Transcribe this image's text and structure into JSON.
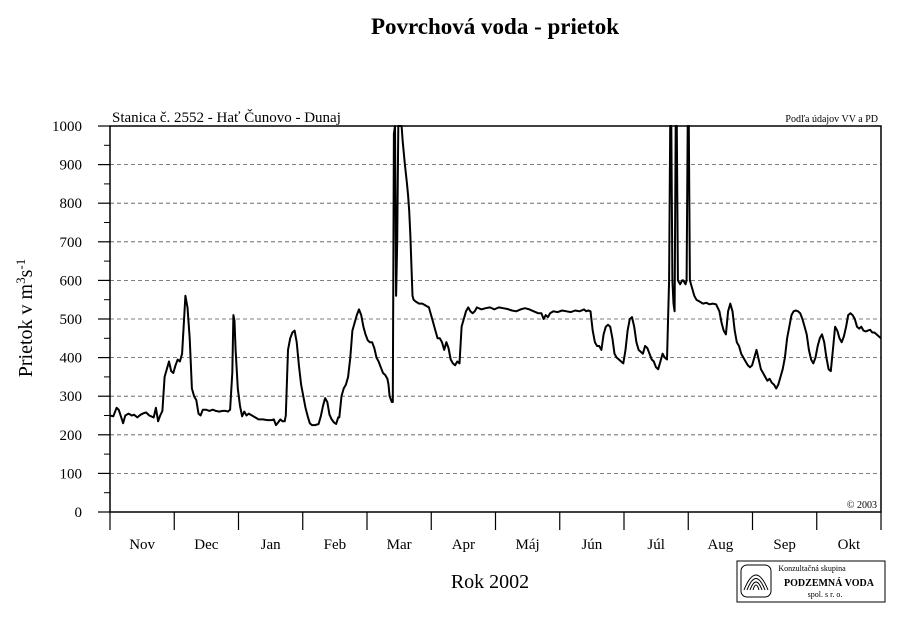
{
  "chart_data": {
    "type": "line",
    "title": "Povrchová voda - prietok",
    "subtitle": "Stanica č. 2552 - Hať Čunovo - Dunaj",
    "source": "Podľa údajov VV a PD",
    "copyright": "© 2003",
    "xlabel": "Rok 2002",
    "ylabel_main": "Prietok v m",
    "ylabel_sup1": "3",
    "ylabel_s": "s",
    "ylabel_sup2": "-1",
    "ylim": [
      0,
      1000
    ],
    "yticks": [
      "0",
      "100",
      "200",
      "300",
      "400",
      "500",
      "600",
      "700",
      "800",
      "900",
      "1000"
    ],
    "grid": "horizontal dashed",
    "months": [
      "Nov",
      "Dec",
      "Jan",
      "Feb",
      "Mar",
      "Apr",
      "Máj",
      "Jún",
      "Júl",
      "Aug",
      "Sep",
      "Okt"
    ],
    "series": [
      {
        "points": [
          [
            0,
            250
          ],
          [
            3,
            248
          ],
          [
            6,
            270
          ],
          [
            8,
            265
          ],
          [
            10,
            248
          ],
          [
            12,
            230
          ],
          [
            14,
            250
          ],
          [
            17,
            255
          ],
          [
            20,
            250
          ],
          [
            22,
            252
          ],
          [
            25,
            245
          ],
          [
            28,
            252
          ],
          [
            30,
            255
          ],
          [
            33,
            258
          ],
          [
            36,
            250
          ],
          [
            40,
            245
          ],
          [
            42,
            270
          ],
          [
            44,
            235
          ],
          [
            46,
            250
          ],
          [
            48,
            262
          ],
          [
            50,
            350
          ],
          [
            52,
            370
          ],
          [
            54,
            390
          ],
          [
            56,
            365
          ],
          [
            58,
            360
          ],
          [
            60,
            380
          ],
          [
            62,
            395
          ],
          [
            64,
            390
          ],
          [
            66,
            410
          ],
          [
            69,
            560
          ],
          [
            71,
            530
          ],
          [
            73,
            450
          ],
          [
            75,
            320
          ],
          [
            77,
            300
          ],
          [
            79,
            290
          ],
          [
            81,
            255
          ],
          [
            83,
            250
          ],
          [
            85,
            265
          ],
          [
            88,
            265
          ],
          [
            91,
            262
          ],
          [
            94,
            265
          ],
          [
            97,
            262
          ],
          [
            100,
            260
          ],
          [
            103,
            262
          ],
          [
            106,
            262
          ],
          [
            108,
            260
          ],
          [
            110,
            265
          ],
          [
            112,
            360
          ],
          [
            113,
            510
          ],
          [
            114,
            495
          ],
          [
            115,
            420
          ],
          [
            117,
            320
          ],
          [
            119,
            275
          ],
          [
            121,
            248
          ],
          [
            123,
            260
          ],
          [
            125,
            250
          ],
          [
            127,
            255
          ],
          [
            130,
            250
          ],
          [
            133,
            245
          ],
          [
            136,
            240
          ],
          [
            140,
            240
          ],
          [
            144,
            238
          ],
          [
            148,
            238
          ],
          [
            150,
            240
          ],
          [
            152,
            225
          ],
          [
            154,
            232
          ],
          [
            156,
            240
          ],
          [
            158,
            235
          ],
          [
            160,
            235
          ],
          [
            161,
            250
          ],
          [
            163,
            420
          ],
          [
            165,
            450
          ],
          [
            167,
            465
          ],
          [
            169,
            470
          ],
          [
            171,
            440
          ],
          [
            173,
            380
          ],
          [
            175,
            330
          ],
          [
            177,
            300
          ],
          [
            179,
            270
          ],
          [
            181,
            248
          ],
          [
            183,
            230
          ],
          [
            185,
            225
          ],
          [
            188,
            225
          ],
          [
            191,
            228
          ],
          [
            193,
            248
          ],
          [
            195,
            275
          ],
          [
            197,
            295
          ],
          [
            199,
            285
          ],
          [
            201,
            252
          ],
          [
            203,
            240
          ],
          [
            205,
            232
          ],
          [
            207,
            228
          ],
          [
            209,
            245
          ],
          [
            210,
            245
          ],
          [
            212,
            300
          ],
          [
            214,
            320
          ],
          [
            216,
            330
          ],
          [
            218,
            350
          ],
          [
            220,
            400
          ],
          [
            222,
            470
          ],
          [
            224,
            490
          ],
          [
            226,
            510
          ],
          [
            228,
            525
          ],
          [
            230,
            510
          ],
          [
            232,
            480
          ],
          [
            234,
            460
          ],
          [
            236,
            445
          ],
          [
            238,
            440
          ],
          [
            240,
            440
          ],
          [
            242,
            425
          ],
          [
            244,
            400
          ],
          [
            246,
            390
          ],
          [
            248,
            375
          ],
          [
            250,
            360
          ],
          [
            252,
            355
          ],
          [
            254,
            345
          ],
          [
            255,
            330
          ],
          [
            256,
            300
          ],
          [
            258,
            285
          ],
          [
            259,
            285
          ],
          [
            260,
            980
          ],
          [
            261,
            1000
          ],
          [
            262,
            560
          ],
          [
            263,
            700
          ],
          [
            264,
            1000
          ],
          [
            267,
            1000
          ],
          [
            268,
            960
          ],
          [
            270,
            900
          ],
          [
            272,
            850
          ],
          [
            273,
            820
          ],
          [
            274,
            780
          ],
          [
            275,
            720
          ],
          [
            276,
            640
          ],
          [
            277,
            560
          ],
          [
            278,
            550
          ],
          [
            280,
            545
          ],
          [
            283,
            540
          ],
          [
            286,
            540
          ],
          [
            289,
            535
          ],
          [
            292,
            530
          ],
          [
            295,
            500
          ],
          [
            298,
            470
          ],
          [
            300,
            450
          ],
          [
            302,
            450
          ],
          [
            304,
            440
          ],
          [
            306,
            420
          ],
          [
            308,
            440
          ],
          [
            310,
            425
          ],
          [
            312,
            395
          ],
          [
            314,
            385
          ],
          [
            316,
            380
          ],
          [
            318,
            390
          ],
          [
            320,
            385
          ],
          [
            322,
            480
          ],
          [
            324,
            500
          ],
          [
            326,
            520
          ],
          [
            328,
            530
          ],
          [
            330,
            520
          ],
          [
            332,
            515
          ],
          [
            334,
            520
          ],
          [
            336,
            530
          ],
          [
            340,
            525
          ],
          [
            344,
            528
          ],
          [
            348,
            530
          ],
          [
            352,
            525
          ],
          [
            356,
            530
          ],
          [
            360,
            528
          ],
          [
            364,
            526
          ],
          [
            368,
            522
          ],
          [
            372,
            520
          ],
          [
            376,
            525
          ],
          [
            380,
            528
          ],
          [
            384,
            525
          ],
          [
            388,
            520
          ],
          [
            392,
            515
          ],
          [
            395,
            515
          ],
          [
            397,
            500
          ],
          [
            399,
            510
          ],
          [
            401,
            505
          ],
          [
            403,
            515
          ],
          [
            406,
            520
          ],
          [
            410,
            518
          ],
          [
            414,
            522
          ],
          [
            418,
            520
          ],
          [
            422,
            518
          ],
          [
            426,
            522
          ],
          [
            430,
            520
          ],
          [
            434,
            525
          ],
          [
            436,
            520
          ],
          [
            438,
            522
          ],
          [
            440,
            520
          ],
          [
            442,
            470
          ],
          [
            444,
            440
          ],
          [
            446,
            430
          ],
          [
            448,
            430
          ],
          [
            450,
            420
          ],
          [
            452,
            460
          ],
          [
            454,
            480
          ],
          [
            456,
            485
          ],
          [
            458,
            480
          ],
          [
            460,
            450
          ],
          [
            462,
            410
          ],
          [
            464,
            400
          ],
          [
            466,
            395
          ],
          [
            468,
            390
          ],
          [
            470,
            385
          ],
          [
            472,
            420
          ],
          [
            474,
            470
          ],
          [
            476,
            500
          ],
          [
            478,
            505
          ],
          [
            480,
            480
          ],
          [
            482,
            440
          ],
          [
            484,
            420
          ],
          [
            486,
            415
          ],
          [
            488,
            410
          ],
          [
            490,
            430
          ],
          [
            492,
            425
          ],
          [
            494,
            410
          ],
          [
            496,
            395
          ],
          [
            498,
            390
          ],
          [
            500,
            375
          ],
          [
            502,
            370
          ],
          [
            504,
            390
          ],
          [
            506,
            410
          ],
          [
            508,
            400
          ],
          [
            510,
            395
          ],
          [
            512,
            600
          ],
          [
            513,
            1000
          ],
          [
            514,
            1000
          ],
          [
            515,
            600
          ],
          [
            516,
            540
          ],
          [
            517,
            520
          ],
          [
            518,
            1000
          ],
          [
            519,
            1000
          ],
          [
            520,
            600
          ],
          [
            522,
            590
          ],
          [
            524,
            600
          ],
          [
            525,
            600
          ],
          [
            527,
            590
          ],
          [
            528,
            600
          ],
          [
            529,
            1000
          ],
          [
            530,
            1000
          ],
          [
            531,
            600
          ],
          [
            533,
            580
          ],
          [
            535,
            560
          ],
          [
            537,
            550
          ],
          [
            540,
            545
          ],
          [
            543,
            540
          ],
          [
            546,
            542
          ],
          [
            549,
            538
          ],
          [
            552,
            540
          ],
          [
            555,
            538
          ],
          [
            558,
            520
          ],
          [
            560,
            490
          ],
          [
            562,
            470
          ],
          [
            564,
            460
          ],
          [
            566,
            520
          ],
          [
            568,
            540
          ],
          [
            570,
            520
          ],
          [
            572,
            470
          ],
          [
            574,
            440
          ],
          [
            576,
            430
          ],
          [
            578,
            410
          ],
          [
            580,
            400
          ],
          [
            582,
            390
          ],
          [
            584,
            380
          ],
          [
            586,
            375
          ],
          [
            588,
            380
          ],
          [
            590,
            400
          ],
          [
            592,
            420
          ],
          [
            594,
            395
          ],
          [
            596,
            370
          ],
          [
            598,
            360
          ],
          [
            600,
            350
          ],
          [
            602,
            340
          ],
          [
            604,
            345
          ],
          [
            606,
            335
          ],
          [
            608,
            330
          ],
          [
            610,
            320
          ],
          [
            612,
            330
          ],
          [
            614,
            350
          ],
          [
            616,
            370
          ],
          [
            618,
            400
          ],
          [
            620,
            450
          ],
          [
            622,
            480
          ],
          [
            624,
            510
          ],
          [
            626,
            520
          ],
          [
            628,
            522
          ],
          [
            630,
            520
          ],
          [
            632,
            515
          ],
          [
            634,
            500
          ],
          [
            636,
            480
          ],
          [
            638,
            460
          ],
          [
            640,
            420
          ],
          [
            642,
            395
          ],
          [
            644,
            385
          ],
          [
            646,
            400
          ],
          [
            648,
            430
          ],
          [
            650,
            450
          ],
          [
            652,
            460
          ],
          [
            654,
            440
          ],
          [
            656,
            400
          ],
          [
            658,
            370
          ],
          [
            660,
            365
          ],
          [
            662,
            420
          ],
          [
            664,
            480
          ],
          [
            666,
            470
          ],
          [
            668,
            450
          ],
          [
            670,
            440
          ],
          [
            672,
            455
          ],
          [
            674,
            480
          ],
          [
            676,
            510
          ],
          [
            678,
            515
          ],
          [
            680,
            510
          ],
          [
            682,
            500
          ],
          [
            684,
            480
          ],
          [
            686,
            475
          ],
          [
            688,
            480
          ],
          [
            690,
            470
          ],
          [
            692,
            468
          ],
          [
            694,
            470
          ],
          [
            696,
            472
          ],
          [
            698,
            465
          ],
          [
            700,
            465
          ],
          [
            702,
            460
          ],
          [
            704,
            455
          ],
          [
            706,
            450
          ]
        ]
      }
    ]
  },
  "logo": {
    "line1": "Konzultačná skupina",
    "line2": "PODZEMNÁ VODA",
    "line3": "spol. s r. o."
  }
}
